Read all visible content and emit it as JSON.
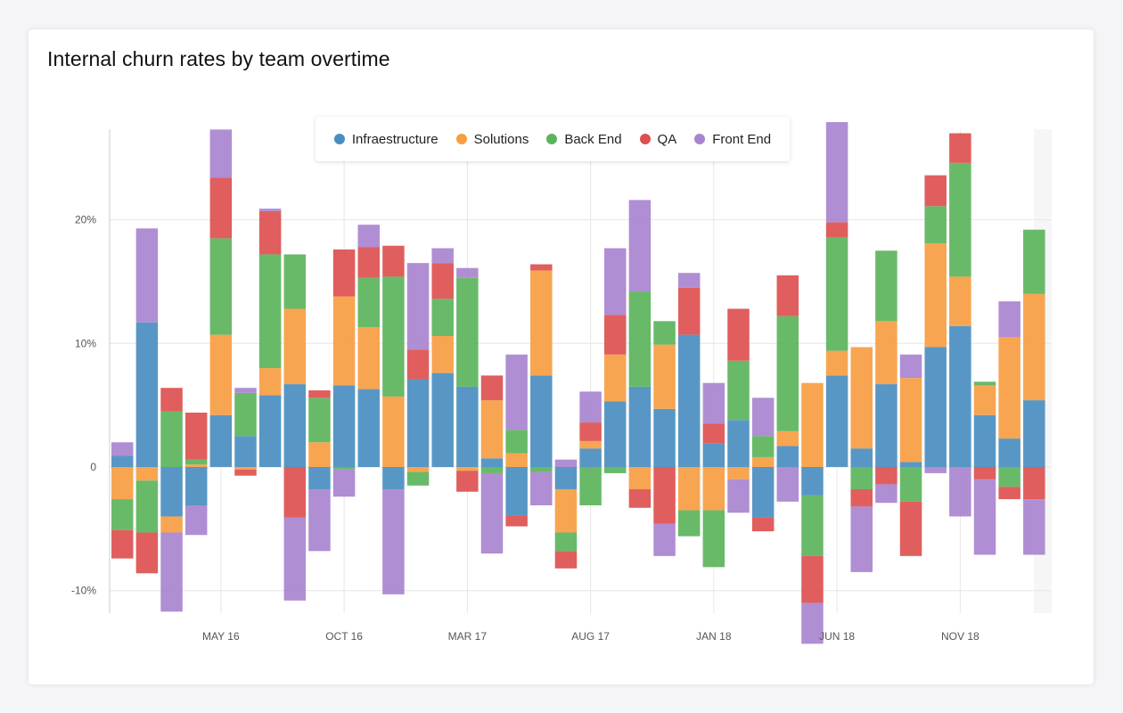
{
  "card": {
    "title": "Internal churn rates by team overtime"
  },
  "chart_data": {
    "type": "bar",
    "stacked": true,
    "title": "Internal churn rates by team overtime",
    "xlabel": "",
    "ylabel": "",
    "ylim": [
      -11.8,
      27.5
    ],
    "yticks": [
      {
        "value": 20,
        "label": "20%"
      },
      {
        "value": 10,
        "label": "10%"
      },
      {
        "value": 0,
        "label": "0"
      },
      {
        "value": -10,
        "label": "-10%"
      }
    ],
    "xticks": [
      {
        "label": "MAY 16",
        "index": 4
      },
      {
        "label": "OCT 16",
        "index": 9
      },
      {
        "label": "MAR 17",
        "index": 14
      },
      {
        "label": "AUG 17",
        "index": 19
      },
      {
        "label": "JAN 18",
        "index": 24
      },
      {
        "label": "JUN 18",
        "index": 29
      },
      {
        "label": "NOV 18",
        "index": 34
      }
    ],
    "grid": true,
    "legend": "top-center",
    "series": [
      {
        "name": "Infraestructure",
        "color": "#4a8ec0",
        "values": [
          0.9,
          11.7,
          -4,
          -3.1,
          4.2,
          2.5,
          5.8,
          6.7,
          -1.8,
          6.6,
          6.3,
          -1.8,
          7.1,
          7.6,
          6.5,
          0.7,
          -3.9,
          7.4,
          -1.8,
          1.5,
          5.3,
          6.5,
          4.7,
          10.7,
          1.9,
          3.8,
          -4.1,
          1.7,
          -2.3,
          7.4,
          1.5,
          6.7,
          0.4,
          9.7,
          11.4,
          4.2,
          2.3,
          5.4
        ]
      },
      {
        "name": "Solutions",
        "color": "#f79d42",
        "values": [
          -2.6,
          -1.1,
          -1.3,
          0.2,
          6.5,
          -0.2,
          2.2,
          6.1,
          2,
          7.2,
          5,
          5.7,
          -0.4,
          3,
          -0.3,
          4.7,
          1.1,
          8.5,
          -3.5,
          0.6,
          3.8,
          -1.8,
          5.2,
          -3.5,
          -3.5,
          -1,
          0.8,
          1.2,
          6.8,
          2,
          8.2,
          5.1,
          6.8,
          8.4,
          4,
          2.4,
          8.2,
          8.6
        ]
      },
      {
        "name": "Back End",
        "color": "#5bb45b",
        "values": [
          -2.5,
          -4.2,
          4.5,
          0.4,
          7.8,
          3.5,
          9.2,
          4.4,
          3.6,
          -0.2,
          4,
          9.7,
          -1.1,
          3,
          8.8,
          -0.5,
          1.9,
          -0.4,
          -1.5,
          -3.1,
          -0.5,
          7.7,
          1.9,
          -2.1,
          -4.6,
          4.8,
          1.7,
          9.3,
          -4.9,
          9.2,
          -1.8,
          5.7,
          -2.8,
          3,
          9.2,
          0.3,
          -1.6,
          5.2
        ]
      },
      {
        "name": "QA",
        "color": "#dd5050",
        "values": [
          -2.3,
          -3.3,
          1.9,
          3.8,
          4.9,
          -0.5,
          3.5,
          -4.1,
          0.6,
          3.8,
          2.5,
          2.5,
          2.4,
          2.9,
          -1.7,
          2,
          -0.9,
          0.5,
          -1.4,
          1.5,
          3.2,
          -1.5,
          -4.6,
          3.8,
          1.6,
          4.2,
          -1.1,
          3.3,
          -3.8,
          1.2,
          -1.4,
          -1.4,
          -4.4,
          2.5,
          2.4,
          -1,
          -1,
          -2.6
        ]
      },
      {
        "name": "Front End",
        "color": "#a984cf",
        "values": [
          1.1,
          7.6,
          -6.4,
          -2.4,
          3.9,
          0.4,
          0.2,
          -6.7,
          -5,
          -2.2,
          1.8,
          -8.5,
          7,
          1.2,
          0.8,
          -6.5,
          6.1,
          -2.7,
          0.6,
          2.5,
          5.4,
          7.4,
          -2.6,
          1.2,
          3.3,
          -2.7,
          3.1,
          -2.8,
          -3.3,
          8.1,
          -5.3,
          -1.5,
          1.9,
          -0.5,
          -4,
          -6.1,
          2.9,
          -4.5
        ]
      }
    ]
  }
}
